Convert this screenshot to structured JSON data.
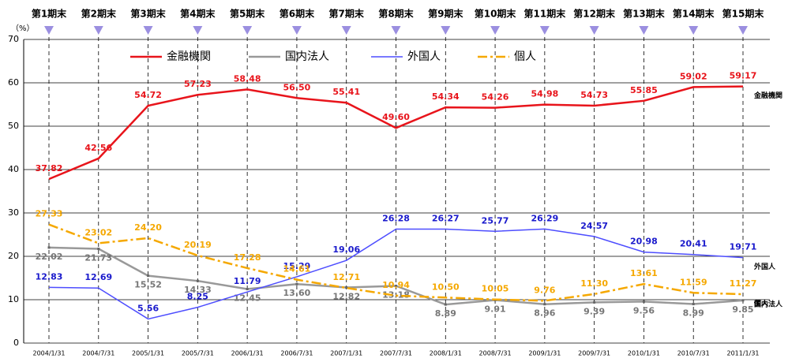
{
  "chart_data": {
    "type": "line",
    "y_label": "（%）",
    "period_labels": [
      "第1期末",
      "第2期末",
      "第3期末",
      "第4期末",
      "第5期末",
      "第6期末",
      "第7期末",
      "第8期末",
      "第9期末",
      "第10期末",
      "第11期末",
      "第12期末",
      "第13期末",
      "第14期末",
      "第15期末"
    ],
    "categories": [
      "2004/1/31",
      "2004/7/31",
      "2005/1/31",
      "2005/7/31",
      "2006/1/31",
      "2006/7/31",
      "2007/1/31",
      "2007/7/31",
      "2008/1/31",
      "2008/7/31",
      "2009/1/31",
      "2009/7/31",
      "2010/1/31",
      "2010/7/31",
      "2011/1/31"
    ],
    "ylim": [
      0,
      70
    ],
    "yticks": [
      0,
      10,
      20,
      30,
      40,
      50,
      60,
      70
    ],
    "grid": true,
    "legend": "top",
    "series": [
      {
        "name": "金融機関",
        "color": "#e8141b",
        "style": "solid",
        "values": [
          37.82,
          42.56,
          54.72,
          57.23,
          58.48,
          56.5,
          55.41,
          49.6,
          54.34,
          54.26,
          54.98,
          54.73,
          55.85,
          59.02,
          59.17
        ],
        "value_labels": [
          "37.82",
          "42.56",
          "54.72",
          "57.23",
          "58.48",
          "56.50",
          "55.41",
          "49.60",
          "54.34",
          "54.26",
          "54.98",
          "54.73",
          "55.85",
          "59.02",
          "59.17"
        ]
      },
      {
        "name": "国内法人",
        "color": "#999999",
        "style": "marked",
        "values": [
          22.02,
          21.73,
          15.52,
          14.33,
          12.45,
          13.6,
          12.82,
          13.18,
          8.89,
          9.91,
          8.96,
          9.39,
          9.56,
          8.99,
          9.85
        ],
        "value_labels": [
          "22.02",
          "21.73",
          "15.52",
          "14.33",
          "12.45",
          "13.60",
          "12.82",
          "13.18",
          "8.89",
          "9.91",
          "8.96",
          "9.39",
          "9.56",
          "8.99",
          "9.85"
        ]
      },
      {
        "name": "外国人",
        "color": "#4d4dff",
        "style": "thin",
        "values": [
          12.83,
          12.69,
          5.56,
          8.25,
          11.79,
          15.29,
          19.06,
          26.28,
          26.27,
          25.77,
          26.29,
          24.57,
          20.98,
          20.41,
          19.71
        ],
        "value_labels": [
          "12.83",
          "12.69",
          "5.56",
          "8.25",
          "11.79",
          "15.29",
          "19.06",
          "26.28",
          "26.27",
          "25.77",
          "26.29",
          "24.57",
          "20.98",
          "20.41",
          "19.71"
        ]
      },
      {
        "name": "個人",
        "color": "#f5a800",
        "style": "dashdot",
        "values": [
          27.33,
          23.02,
          24.2,
          20.19,
          17.28,
          14.61,
          12.71,
          10.94,
          10.5,
          10.05,
          9.76,
          11.3,
          13.61,
          11.59,
          11.27
        ],
        "value_labels": [
          "27.33",
          "23.02",
          "24.20",
          "20.19",
          "17.28",
          "14.61",
          "12.71",
          "10.94",
          "10.50",
          "10.05",
          "9.76",
          "11.30",
          "13.61",
          "11.59",
          "11.27"
        ]
      }
    ]
  }
}
